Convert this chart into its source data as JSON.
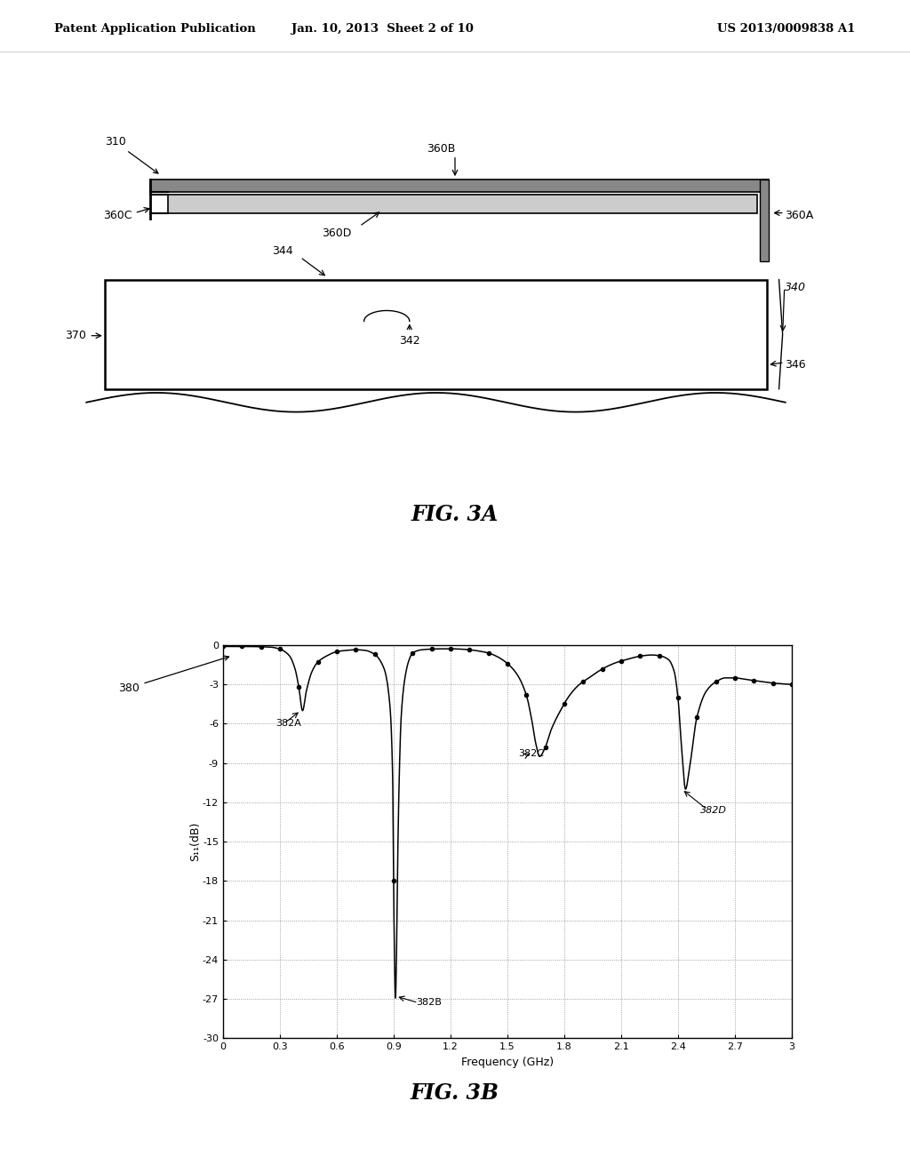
{
  "header_left": "Patent Application Publication",
  "header_center": "Jan. 10, 2013  Sheet 2 of 10",
  "header_right": "US 2013/0009838 A1",
  "fig3a_label": "FIG. 3A",
  "fig3b_label": "FIG. 3B",
  "bg_color": "#ffffff",
  "plot_xlabel": "Frequency (GHz)",
  "plot_ylabel": "S₁₁(dB)",
  "plot_xlim": [
    0,
    3.0
  ],
  "plot_ylim": [
    -30,
    0
  ],
  "plot_xticks": [
    0,
    0.3,
    0.6,
    0.9,
    1.2,
    1.5,
    1.8,
    2.1,
    2.4,
    2.7,
    3.0
  ],
  "plot_yticks": [
    0,
    -3,
    -6,
    -9,
    -12,
    -15,
    -18,
    -21,
    -24,
    -27,
    -30
  ],
  "label_380": "380",
  "label_382A": "382A",
  "label_382B": "382B",
  "label_382C": "382C",
  "label_382D": "382D"
}
